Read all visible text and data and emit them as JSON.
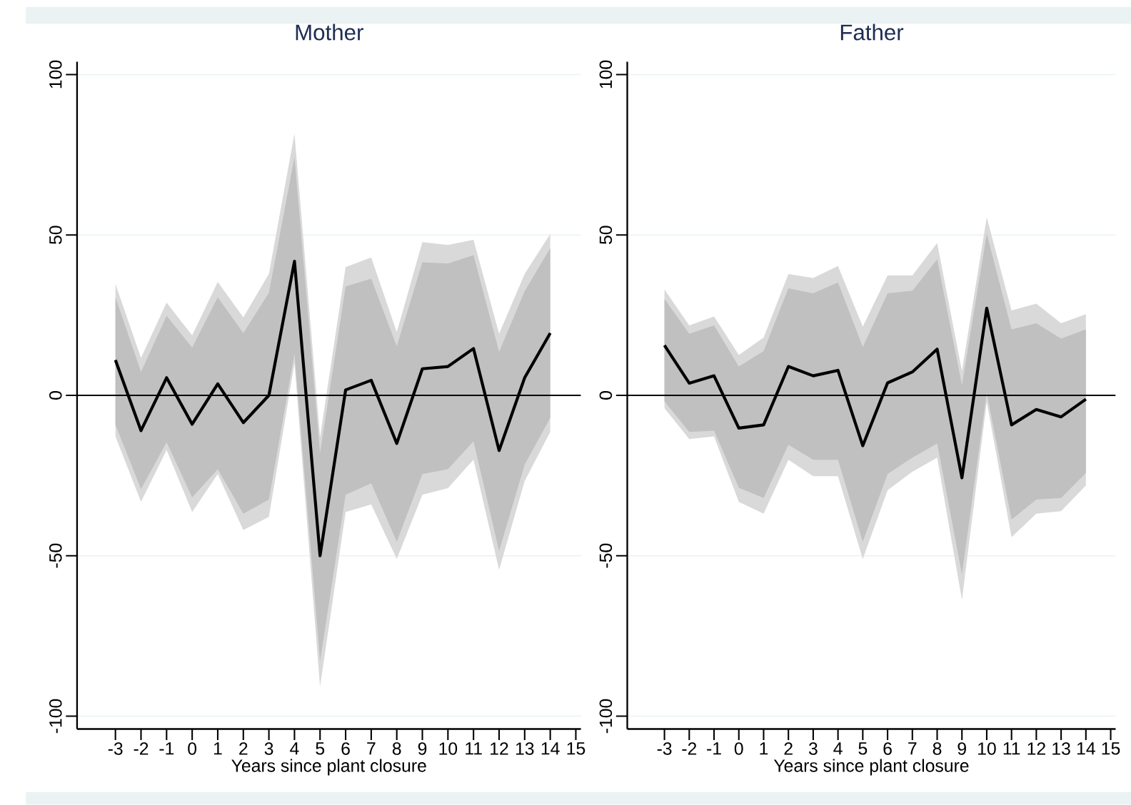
{
  "chart_data": [
    {
      "type": "line",
      "title": "Mother",
      "xlabel": "Years since plant closure",
      "x": [
        -3,
        -2,
        -1,
        0,
        1,
        2,
        3,
        4,
        5,
        6,
        7,
        8,
        9,
        10,
        11,
        12,
        13,
        14
      ],
      "series": [
        {
          "color": "#d9d9d9",
          "values": [
            null,
            null,
            null,
            null,
            null,
            null,
            null,
            null,
            null,
            null,
            null,
            null,
            null,
            null,
            null,
            null,
            null,
            null
          ],
          "lower": [
            -12.8,
            -33.2,
            -17,
            -36.4,
            -24.5,
            -42,
            -37.9,
            10,
            -90.8,
            -36.4,
            -34,
            -51,
            -31,
            -28.9,
            -20,
            -54.4,
            -26.7,
            -11.4
          ],
          "upper": [
            34.7,
            11.7,
            28.9,
            18.7,
            35.4,
            24.3,
            37.9,
            81.6,
            -13,
            40,
            43,
            19.7,
            47.8,
            46.9,
            48.5,
            19.2,
            37.9,
            50.3
          ]
        },
        {
          "color": "#c0c0c0",
          "values": [
            null,
            null,
            null,
            null,
            null,
            null,
            null,
            null,
            null,
            null,
            null,
            null,
            null,
            null,
            null,
            null,
            null,
            null
          ],
          "lower": [
            -9.2,
            -29.2,
            -14.6,
            -31.8,
            -23,
            -36.9,
            -32.5,
            13,
            -82.8,
            -31,
            -27.4,
            -45.6,
            -24.5,
            -23,
            -14.3,
            -48.5,
            -21.6,
            -7
          ],
          "upper": [
            30.6,
            7.3,
            24.8,
            14.9,
            30.6,
            19.4,
            32,
            74.3,
            -18,
            34,
            36.4,
            15.3,
            41.5,
            41.1,
            43.7,
            13.6,
            32.5,
            45.9
          ]
        },
        {
          "color": "#000000",
          "values": [
            11,
            -11,
            5.5,
            -9,
            3.6,
            -8.5,
            0,
            41.8,
            -50,
            1.7,
            4.7,
            -15,
            8.3,
            9,
            14.6,
            -17.2,
            5.5,
            19.4
          ]
        }
      ],
      "xlim": [
        -4.5,
        15.2
      ],
      "ylim": [
        -104,
        104
      ],
      "xticks": [
        -3,
        -2,
        -1,
        0,
        1,
        2,
        3,
        4,
        5,
        6,
        7,
        8,
        9,
        10,
        11,
        12,
        13,
        14,
        15
      ],
      "yticks": [
        -100,
        -50,
        0,
        50,
        100
      ],
      "grid": "y",
      "ref_lines": [
        {
          "axis": "y",
          "value": 0,
          "color": "#000000"
        }
      ]
    },
    {
      "type": "line",
      "title": "Father",
      "xlabel": "Years since plant closure",
      "x": [
        -3,
        -2,
        -1,
        0,
        1,
        2,
        3,
        4,
        5,
        6,
        7,
        8,
        9,
        10,
        11,
        12,
        13,
        14
      ],
      "series": [
        {
          "color": "#d9d9d9",
          "values": [
            null,
            null,
            null,
            null,
            null,
            null,
            null,
            null,
            null,
            null,
            null,
            null,
            null,
            null,
            null,
            null,
            null,
            null
          ],
          "lower": [
            -4,
            -13.6,
            -12.8,
            -33.2,
            -36.9,
            -20.1,
            -25.2,
            -25.2,
            -51,
            -29.6,
            -23.8,
            -19.4,
            -63.8,
            -2,
            -44.2,
            -36.9,
            -36.1,
            -28.1
          ],
          "upper": [
            33,
            21.8,
            24.6,
            12.6,
            18,
            37.8,
            36.6,
            40.3,
            21.4,
            37.4,
            37.4,
            47.5,
            7.6,
            55.5,
            26.5,
            28.6,
            22.5,
            25.3
          ]
        },
        {
          "color": "#c0c0c0",
          "values": [
            null,
            null,
            null,
            null,
            null,
            null,
            null,
            null,
            null,
            null,
            null,
            null,
            null,
            null,
            null,
            null,
            null,
            null
          ],
          "lower": [
            -1.9,
            -11.4,
            -11,
            -28.8,
            -32,
            -15.4,
            -20.1,
            -20.1,
            -45.6,
            -24.5,
            -19.4,
            -15,
            -55.8,
            0.7,
            -38.7,
            -32.5,
            -32,
            -24.2
          ],
          "upper": [
            30.1,
            19.2,
            21.8,
            9,
            13.8,
            33.4,
            31.8,
            35.2,
            15.1,
            31.8,
            32.6,
            42.4,
            3.2,
            50.4,
            20.6,
            22.5,
            17.7,
            20.6
          ]
        },
        {
          "color": "#000000",
          "values": [
            15.6,
            3.8,
            6.1,
            -10.2,
            -9.2,
            9,
            6.1,
            7.8,
            -15.7,
            3.9,
            7.3,
            14.4,
            -25.7,
            27.2,
            -9.2,
            -4.4,
            -6.7,
            -1.2
          ]
        }
      ],
      "xlim": [
        -4.5,
        15.2
      ],
      "ylim": [
        -104,
        104
      ],
      "xticks": [
        -3,
        -2,
        -1,
        0,
        1,
        2,
        3,
        4,
        5,
        6,
        7,
        8,
        9,
        10,
        11,
        12,
        13,
        14,
        15
      ],
      "yticks": [
        -100,
        -50,
        0,
        50,
        100
      ],
      "grid": "y",
      "ref_lines": [
        {
          "axis": "y",
          "value": 0,
          "color": "#000000"
        }
      ]
    }
  ]
}
